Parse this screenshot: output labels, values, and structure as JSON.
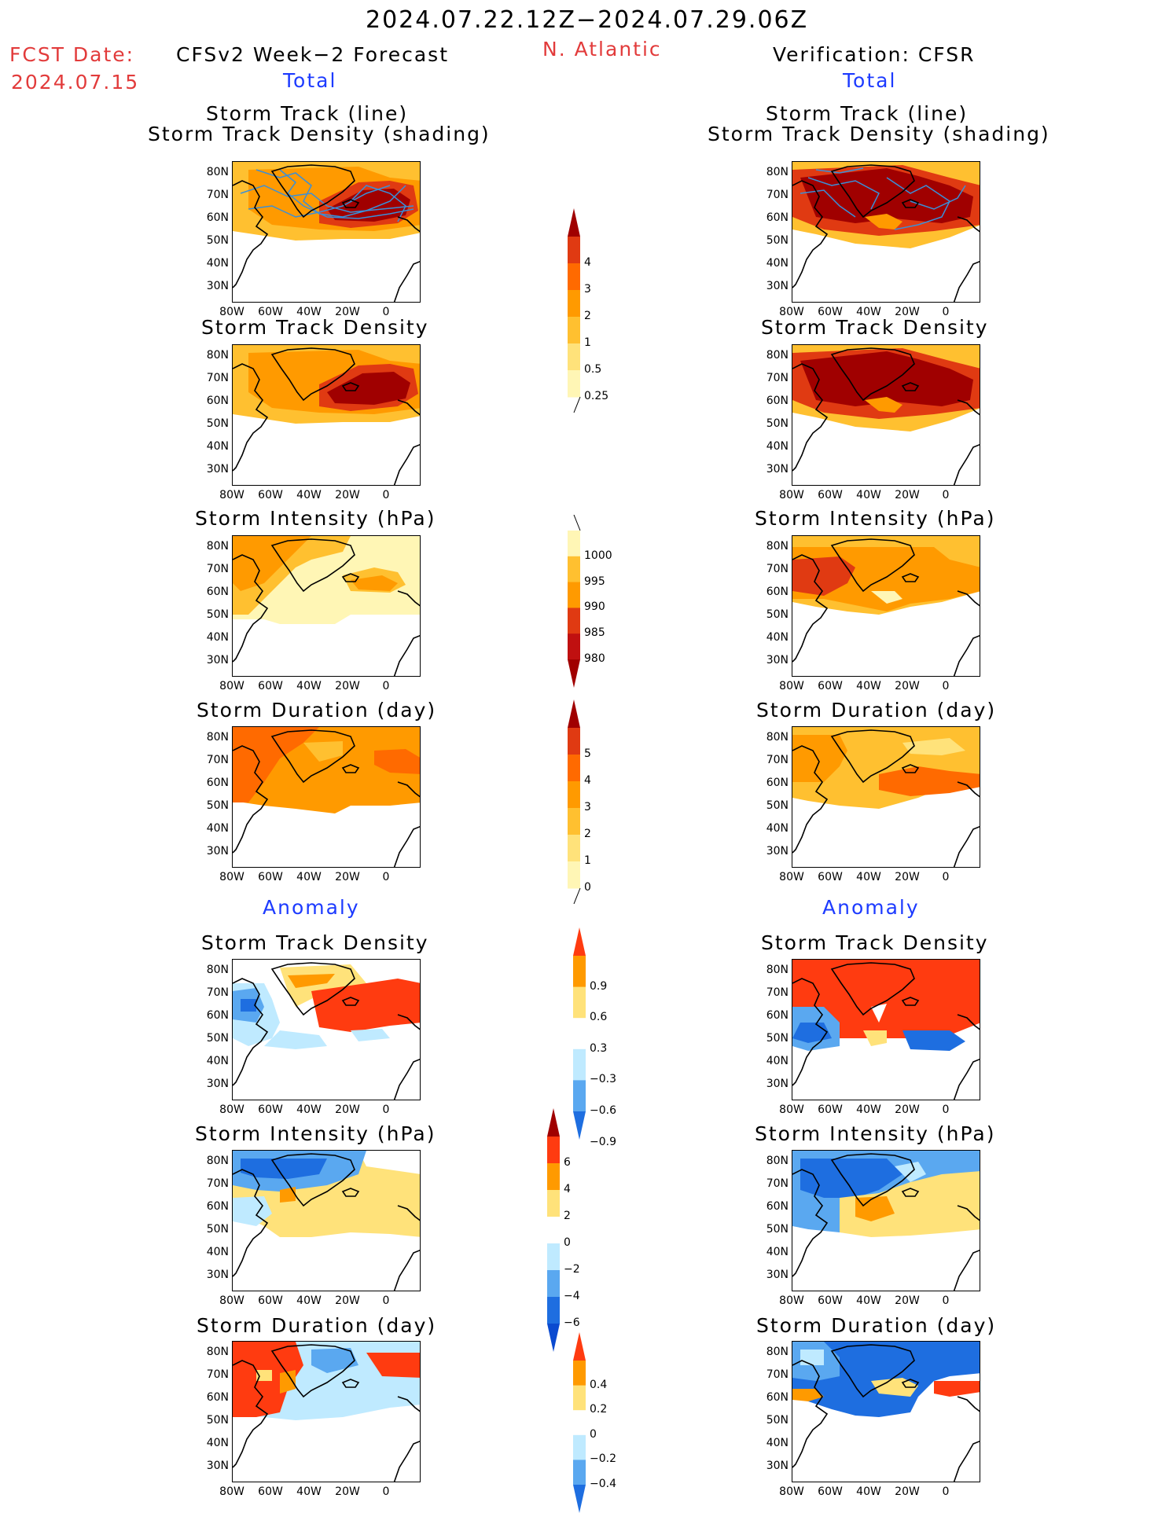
{
  "header": {
    "date_range": "2024.07.22.12Z−2024.07.29.06Z",
    "fcst_label": "FCST Date:",
    "fcst_date": "2024.07.15",
    "left_title": "CFSv2 Week−2 Forecast",
    "region": "N. Atlantic",
    "right_title": "Verification: CFSR",
    "total_label": "Total",
    "anomaly_label": "Anomaly"
  },
  "axis_labels": {
    "y": [
      "80N",
      "70N",
      "60N",
      "50N",
      "40N",
      "30N"
    ],
    "x": [
      "80W",
      "60W",
      "40W",
      "20W",
      "0"
    ]
  },
  "panel_titles": {
    "track_line": "Storm Track (line)",
    "track_shading": "Storm Track Density (shading)",
    "density": "Storm Track Density",
    "intensity": "Storm Intensity (hPa)",
    "duration": "Storm Duration (day)"
  },
  "colorbars": {
    "density_total": {
      "labels": [
        "4",
        "3",
        "2",
        "1",
        "0.5",
        "0.25"
      ],
      "colors": [
        "#a00000",
        "#e03a12",
        "#ff6a00",
        "#ff9a00",
        "#ffc030",
        "#ffe27a",
        "#fff6b5"
      ]
    },
    "intensity_total": {
      "labels": [
        "1000",
        "995",
        "990",
        "985",
        "980"
      ],
      "colors": [
        "#fff6b5",
        "#ffc030",
        "#ff9a00",
        "#e03a12",
        "#c01010",
        "#a00000"
      ]
    },
    "duration_total": {
      "labels": [
        "5",
        "4",
        "3",
        "2",
        "1",
        "0"
      ],
      "colors": [
        "#a00000",
        "#e03a12",
        "#ff6a00",
        "#ff9a00",
        "#ffc030",
        "#ffe27a",
        "#fff6b5"
      ]
    },
    "density_anom": {
      "labels": [
        "0.9",
        "0.6",
        "0.3",
        "−0.3",
        "−0.6",
        "−0.9"
      ],
      "colors": [
        "#ff3b10",
        "#ff9a00",
        "#ffe27a",
        "#ffffff",
        "#bfeaff",
        "#5aa8f0",
        "#1e6ee0"
      ]
    },
    "intensity_anom": {
      "labels": [
        "6",
        "4",
        "2",
        "0",
        "−2",
        "−4",
        "−6"
      ],
      "colors": [
        "#a00000",
        "#ff3b10",
        "#ff9a00",
        "#ffe27a",
        "#ffffff",
        "#bfeaff",
        "#5aa8f0",
        "#1e6ee0",
        "#0a4ad0"
      ]
    },
    "duration_anom": {
      "labels": [
        "0.4",
        "0.2",
        "0",
        "−0.2",
        "−0.4"
      ],
      "colors": [
        "#ff3b10",
        "#ff9a00",
        "#ffe27a",
        "#ffffff",
        "#bfeaff",
        "#5aa8f0",
        "#1e6ee0"
      ]
    }
  }
}
